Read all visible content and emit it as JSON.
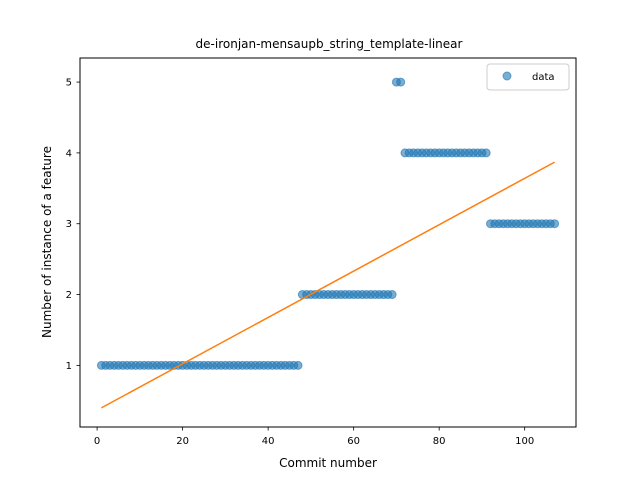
{
  "chart_data": {
    "type": "scatter",
    "title": "de-ironjan-mensaupb_string_template-linear",
    "xlabel": "Commit number",
    "ylabel": "Number of instance of a feature",
    "xlim": [
      -4,
      112
    ],
    "ylim": [
      0.13,
      5.34
    ],
    "xticks": [
      0,
      20,
      40,
      60,
      80,
      100
    ],
    "yticks": [
      1,
      2,
      3,
      4,
      5
    ],
    "grid": false,
    "legend_position": "top-right",
    "series": [
      {
        "name": "data",
        "kind": "scatter",
        "color": "#1f77b4",
        "points": [
          [
            1,
            1
          ],
          [
            2,
            1
          ],
          [
            3,
            1
          ],
          [
            4,
            1
          ],
          [
            5,
            1
          ],
          [
            6,
            1
          ],
          [
            7,
            1
          ],
          [
            8,
            1
          ],
          [
            9,
            1
          ],
          [
            10,
            1
          ],
          [
            11,
            1
          ],
          [
            12,
            1
          ],
          [
            13,
            1
          ],
          [
            14,
            1
          ],
          [
            15,
            1
          ],
          [
            16,
            1
          ],
          [
            17,
            1
          ],
          [
            18,
            1
          ],
          [
            19,
            1
          ],
          [
            20,
            1
          ],
          [
            21,
            1
          ],
          [
            22,
            1
          ],
          [
            23,
            1
          ],
          [
            24,
            1
          ],
          [
            25,
            1
          ],
          [
            26,
            1
          ],
          [
            27,
            1
          ],
          [
            28,
            1
          ],
          [
            29,
            1
          ],
          [
            30,
            1
          ],
          [
            31,
            1
          ],
          [
            32,
            1
          ],
          [
            33,
            1
          ],
          [
            34,
            1
          ],
          [
            35,
            1
          ],
          [
            36,
            1
          ],
          [
            37,
            1
          ],
          [
            38,
            1
          ],
          [
            39,
            1
          ],
          [
            40,
            1
          ],
          [
            41,
            1
          ],
          [
            42,
            1
          ],
          [
            43,
            1
          ],
          [
            44,
            1
          ],
          [
            45,
            1
          ],
          [
            46,
            1
          ],
          [
            47,
            1
          ],
          [
            48,
            2
          ],
          [
            49,
            2
          ],
          [
            50,
            2
          ],
          [
            51,
            2
          ],
          [
            52,
            2
          ],
          [
            53,
            2
          ],
          [
            54,
            2
          ],
          [
            55,
            2
          ],
          [
            56,
            2
          ],
          [
            57,
            2
          ],
          [
            58,
            2
          ],
          [
            59,
            2
          ],
          [
            60,
            2
          ],
          [
            61,
            2
          ],
          [
            62,
            2
          ],
          [
            63,
            2
          ],
          [
            64,
            2
          ],
          [
            65,
            2
          ],
          [
            66,
            2
          ],
          [
            67,
            2
          ],
          [
            68,
            2
          ],
          [
            69,
            2
          ],
          [
            70,
            5
          ],
          [
            71,
            5
          ],
          [
            72,
            4
          ],
          [
            73,
            4
          ],
          [
            74,
            4
          ],
          [
            75,
            4
          ],
          [
            76,
            4
          ],
          [
            77,
            4
          ],
          [
            78,
            4
          ],
          [
            79,
            4
          ],
          [
            80,
            4
          ],
          [
            81,
            4
          ],
          [
            82,
            4
          ],
          [
            83,
            4
          ],
          [
            84,
            4
          ],
          [
            85,
            4
          ],
          [
            86,
            4
          ],
          [
            87,
            4
          ],
          [
            88,
            4
          ],
          [
            89,
            4
          ],
          [
            90,
            4
          ],
          [
            91,
            4
          ],
          [
            92,
            3
          ],
          [
            93,
            3
          ],
          [
            94,
            3
          ],
          [
            95,
            3
          ],
          [
            96,
            3
          ],
          [
            97,
            3
          ],
          [
            98,
            3
          ],
          [
            99,
            3
          ],
          [
            100,
            3
          ],
          [
            101,
            3
          ],
          [
            102,
            3
          ],
          [
            103,
            3
          ],
          [
            104,
            3
          ],
          [
            105,
            3
          ],
          [
            106,
            3
          ],
          [
            107,
            3
          ]
        ]
      },
      {
        "kind": "line",
        "color": "#ff7f0e",
        "points": [
          [
            1,
            0.4
          ],
          [
            107,
            3.87
          ]
        ]
      }
    ]
  }
}
